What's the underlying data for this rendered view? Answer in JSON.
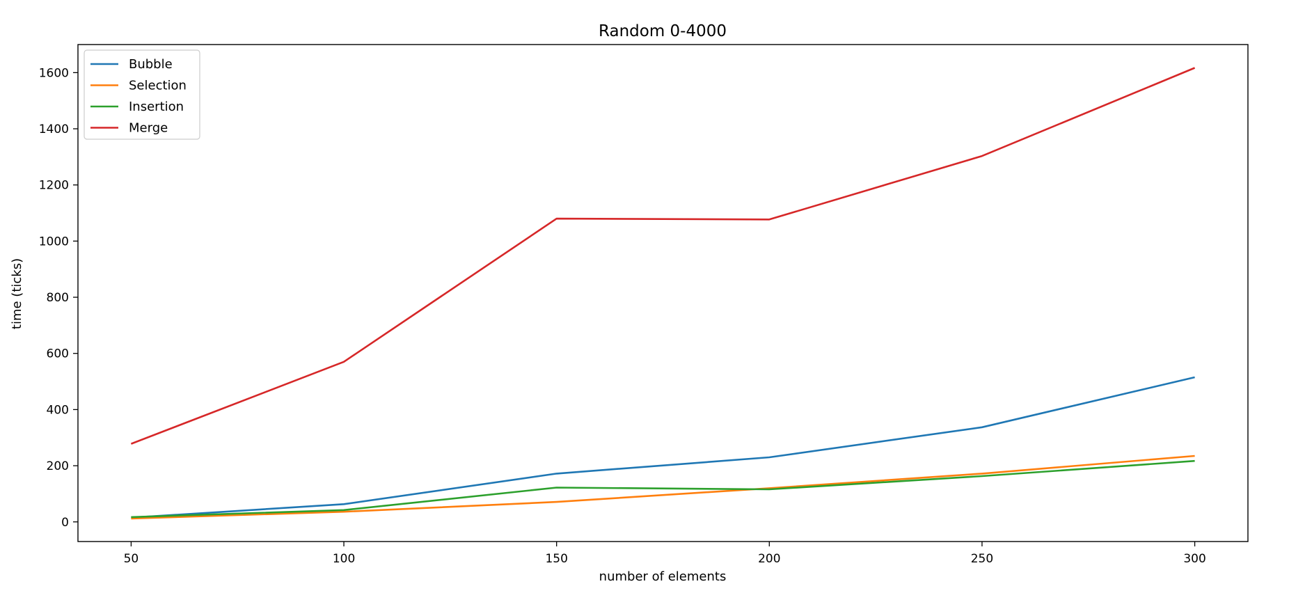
{
  "chart_data": {
    "type": "line",
    "title": "Random 0-4000",
    "xlabel": "number of elements",
    "ylabel": "time (ticks)",
    "x": [
      50,
      100,
      150,
      200,
      250,
      300
    ],
    "xticks": [
      "50",
      "100",
      "150",
      "200",
      "250",
      "300"
    ],
    "yticks": [
      "0",
      "200",
      "400",
      "600",
      "800",
      "1000",
      "1200",
      "1400",
      "1600"
    ],
    "xlim": [
      37.5,
      312.5
    ],
    "ylim": [
      -70,
      1700
    ],
    "grid": false,
    "legend_position": "top-left",
    "series": [
      {
        "name": "Bubble",
        "color": "#1f77b4",
        "values": [
          15,
          63,
          172,
          230,
          337,
          515
        ]
      },
      {
        "name": "Selection",
        "color": "#ff7f0e",
        "values": [
          12,
          36,
          71,
          120,
          172,
          235
        ]
      },
      {
        "name": "Insertion",
        "color": "#2ca02c",
        "values": [
          17,
          42,
          122,
          116,
          163,
          217
        ]
      },
      {
        "name": "Merge",
        "color": "#d62728",
        "values": [
          278,
          570,
          1080,
          1077,
          1303,
          1617
        ]
      }
    ]
  }
}
